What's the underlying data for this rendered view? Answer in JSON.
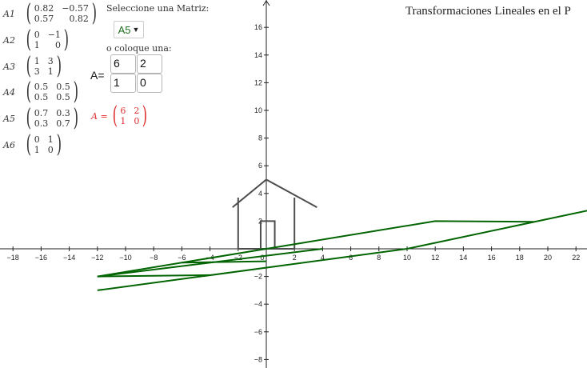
{
  "title": "Transformaciones Lineales en el P",
  "matrices": [
    {
      "name": "A1",
      "r1": [
        "0.82",
        "−0.57"
      ],
      "r2": [
        "0.57",
        "0.82"
      ]
    },
    {
      "name": "A2",
      "r1": [
        "0",
        "−1"
      ],
      "r2": [
        "1",
        "0"
      ]
    },
    {
      "name": "A3",
      "r1": [
        "1",
        "3"
      ],
      "r2": [
        "3",
        "1"
      ]
    },
    {
      "name": "A4",
      "r1": [
        "0.5",
        "0.5"
      ],
      "r2": [
        "0.5",
        "0.5"
      ]
    },
    {
      "name": "A5",
      "r1": [
        "0.7",
        "0.3"
      ],
      "r2": [
        "0.3",
        "0.7"
      ]
    },
    {
      "name": "A6",
      "r1": [
        "0",
        "1"
      ],
      "r2": [
        "1",
        "0"
      ]
    }
  ],
  "select_label": "Seleccione una Matriz:",
  "selected_matrix": "A5",
  "or_label": "o coloque una:",
  "a_label": "A=",
  "inputs": {
    "a11": "6",
    "a12": "2",
    "a21": "1",
    "a22": "0"
  },
  "result": {
    "label": "A =",
    "r1": [
      "6",
      "2"
    ],
    "r2": [
      "1",
      "0"
    ]
  },
  "axes": {
    "x_ticks": [
      "−18",
      "−16",
      "−14",
      "−12",
      "−10",
      "−8",
      "−6",
      "−4",
      "−2",
      "0",
      "2",
      "4",
      "6",
      "8",
      "10",
      "12",
      "14",
      "16",
      "18",
      "20",
      "22"
    ],
    "y_ticks": [
      "16",
      "14",
      "12",
      "10",
      "8",
      "6",
      "4",
      "2",
      "−2",
      "−4",
      "−6",
      "−8"
    ]
  },
  "colors": {
    "house": "#4d4d4d",
    "transformed": "#006400",
    "result": "#e03030",
    "dropdown": "#1b6e1b"
  }
}
